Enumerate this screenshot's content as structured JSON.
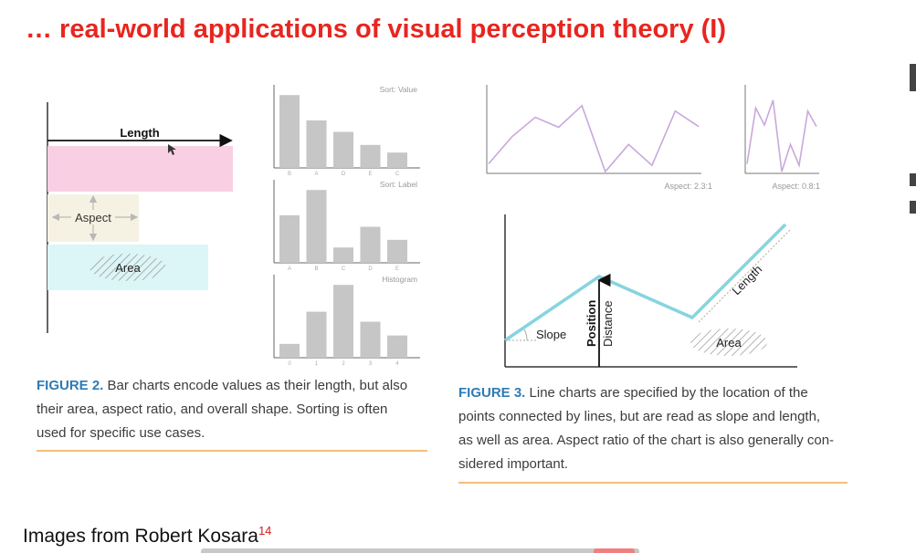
{
  "slide": {
    "title": "… real-world applications of visual perception theory (I)",
    "footer_text": "Images from Robert Kosara",
    "footer_ref": "14"
  },
  "figure2": {
    "labels": {
      "length": "Length",
      "aspect": "Aspect",
      "area": "Area"
    },
    "colors": {
      "length_fill": "#f9cfe3",
      "aspect_fill": "#f6f2e3",
      "area_fill": "#dcf5f7",
      "bar": "#c6c6c6"
    },
    "caption_label": "FIGURE 2.",
    "caption_lines": [
      "Bar charts encode values as their length, but also",
      "their area, aspect ratio, and overall shape. Sorting is often",
      "used for specific use cases."
    ]
  },
  "figure3": {
    "labels": {
      "slope": "Slope",
      "position": "Position",
      "distance": "Distance",
      "length": "Length",
      "area": "Area"
    },
    "colors": {
      "aspect_line": "#c9a8dc",
      "main_line": "#86d4e0"
    },
    "caption_label": "FIGURE 3.",
    "caption_lines": [
      "Line charts are specified by the location of the",
      "points connected by lines, but are read as slope and length,",
      "as well as area. Aspect ratio of the chart is also generally con-",
      "sidered important."
    ]
  },
  "chart_data": [
    {
      "type": "bar",
      "title": "Sort: Value",
      "categories": [
        "B",
        "A",
        "D",
        "E",
        "C"
      ],
      "values": [
        9.5,
        6.2,
        4.7,
        3.0,
        2.0
      ],
      "ylim": [
        0,
        10
      ]
    },
    {
      "type": "bar",
      "title": "Sort: Label",
      "categories": [
        "A",
        "B",
        "C",
        "D",
        "E"
      ],
      "values": [
        6.2,
        9.5,
        2.0,
        4.7,
        3.0
      ],
      "ylim": [
        0,
        10
      ]
    },
    {
      "type": "bar",
      "title": "Histogram",
      "categories": [
        "0",
        "1",
        "2",
        "3",
        "4"
      ],
      "values": [
        1.8,
        6.0,
        9.5,
        4.7,
        2.9
      ],
      "ylim": [
        0,
        10
      ]
    },
    {
      "type": "line",
      "title": "Aspect: 2.3:1",
      "values": [
        1.0,
        4.5,
        7.0,
        5.7,
        8.5,
        0.0,
        3.5,
        0.8,
        7.8,
        5.8
      ],
      "ylim": [
        0,
        10
      ]
    },
    {
      "type": "line",
      "title": "Aspect: 0.8:1",
      "values": [
        1.0,
        8.2,
        6.0,
        9.2,
        0.0,
        3.5,
        0.8,
        7.8,
        5.8
      ],
      "ylim": [
        0,
        10
      ]
    }
  ]
}
